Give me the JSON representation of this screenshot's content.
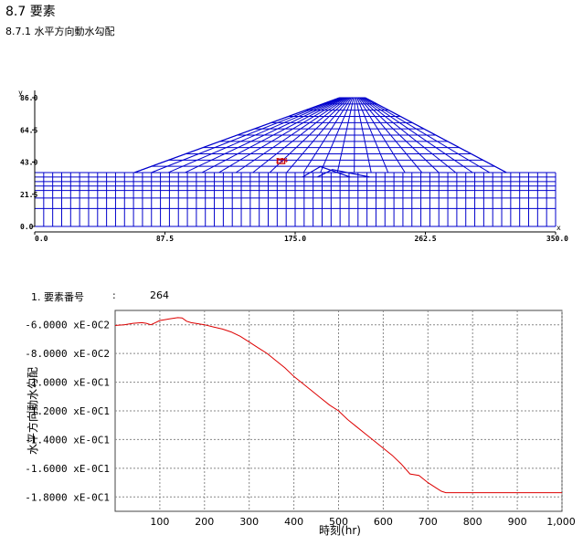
{
  "heading": {
    "section": "8.7 要素",
    "subsection": "8.7.1 水平方向動水勾配"
  },
  "mesh": {
    "y_axis_label": "y",
    "x_axis_label": "x",
    "y_ticks": [
      "86.0",
      "64.5",
      "43.0",
      "21.5",
      "0.0"
    ],
    "x_ticks": [
      "0.0",
      "87.5",
      "175.0",
      "262.5",
      "350.0"
    ],
    "marker_label": "264",
    "mesh_color": "#0000cc",
    "marker_color": "#cc0000"
  },
  "element_info": {
    "label": "1. 要素番号",
    "separator": ":",
    "value": "264"
  },
  "chart_data": {
    "type": "line",
    "xlabel": "時刻(hr)",
    "ylabel": "水平方向動水勾配",
    "xlim": [
      0,
      1000
    ],
    "ylim": [
      -0.19,
      -0.05
    ],
    "x_ticks": [
      "100",
      "200",
      "300",
      "400",
      "500",
      "600",
      "700",
      "800",
      "900",
      "1,000"
    ],
    "y_ticks": [
      {
        "value": -0.06,
        "label": "-6.0000 xE-0C2"
      },
      {
        "value": -0.08,
        "label": "-8.0000 xE-0C2"
      },
      {
        "value": -0.1,
        "label": "-1.0000 xE-0C1"
      },
      {
        "value": -0.12,
        "label": "-1.2000 xE-0C1"
      },
      {
        "value": -0.14,
        "label": "-1.4000 xE-0C1"
      },
      {
        "value": -0.16,
        "label": "-1.6000 xE-0C1"
      },
      {
        "value": -0.18,
        "label": "-1.8000 xE-0C1"
      }
    ],
    "grid": true,
    "line_color": "#dd0000",
    "series": [
      {
        "x": [
          0,
          20,
          40,
          60,
          70,
          80,
          90,
          100,
          110,
          120,
          130,
          140,
          150,
          160,
          170,
          180,
          200,
          220,
          240,
          260,
          280,
          300,
          320,
          340,
          360,
          380,
          400,
          420,
          440,
          460,
          480,
          500,
          520,
          540,
          560,
          580,
          600,
          620,
          640,
          660,
          680,
          700,
          720,
          730,
          740,
          760,
          800,
          900,
          1000
        ],
        "y": [
          -0.0605,
          -0.06,
          -0.059,
          -0.0585,
          -0.059,
          -0.06,
          -0.0585,
          -0.057,
          -0.0565,
          -0.056,
          -0.0555,
          -0.055,
          -0.0552,
          -0.0575,
          -0.0585,
          -0.059,
          -0.06,
          -0.0615,
          -0.063,
          -0.065,
          -0.068,
          -0.072,
          -0.076,
          -0.08,
          -0.085,
          -0.09,
          -0.096,
          -0.101,
          -0.106,
          -0.111,
          -0.116,
          -0.12,
          -0.126,
          -0.131,
          -0.136,
          -0.141,
          -0.146,
          -0.151,
          -0.157,
          -0.164,
          -0.165,
          -0.17,
          -0.174,
          -0.176,
          -0.177,
          -0.177,
          -0.177,
          -0.177,
          -0.177
        ]
      }
    ]
  }
}
